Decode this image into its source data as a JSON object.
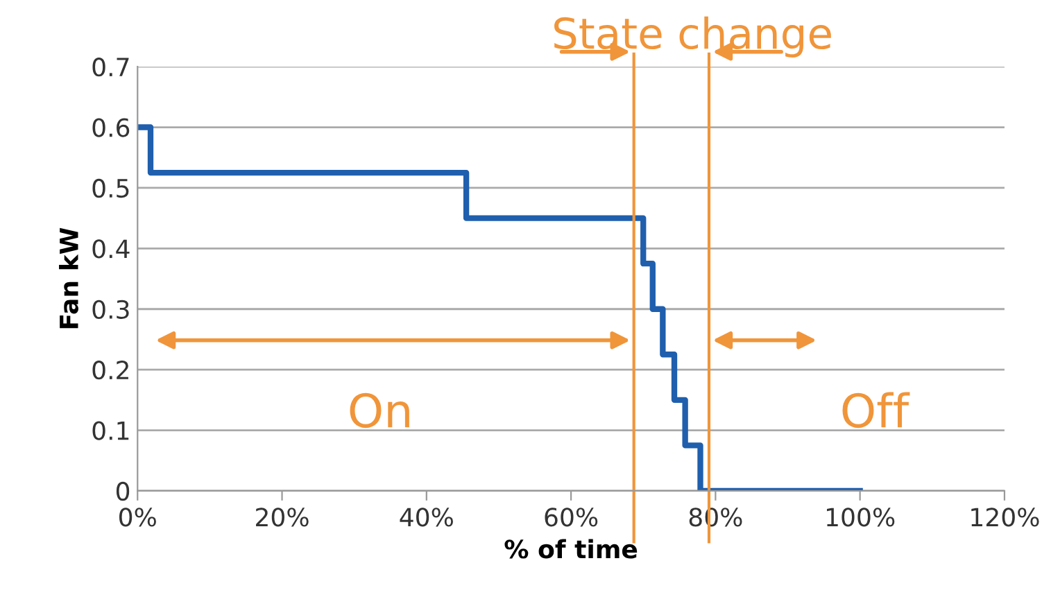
{
  "chart_data": {
    "type": "step",
    "xlabel": "% of time",
    "ylabel": "Fan kW",
    "x": [
      0,
      1.8,
      45.5,
      70,
      71.3,
      72.7,
      74.3,
      75.8,
      77.9,
      100
    ],
    "series": [
      {
        "color": "#1f5fad",
        "values": [
          0.6,
          0.525,
          0.45,
          0.375,
          0.3,
          0.225,
          0.15,
          0.075,
          0,
          0
        ]
      }
    ],
    "xlim": [
      0,
      120
    ],
    "xticks": [
      {
        "value": 0,
        "label": "0%"
      },
      {
        "value": 20,
        "label": "20%"
      },
      {
        "value": 40,
        "label": "40%"
      },
      {
        "value": 60,
        "label": "60%"
      },
      {
        "value": 80,
        "label": "80%"
      },
      {
        "value": 100,
        "label": "100%"
      },
      {
        "value": 120,
        "label": "120%"
      }
    ],
    "ylim": [
      0,
      0.7
    ],
    "yticks": [
      0,
      0.1,
      0.2,
      0.3,
      0.4,
      0.5,
      0.6,
      0.7
    ],
    "grid": "y",
    "legend": false,
    "marker": "none",
    "line_style": "solid",
    "ref_lines": [
      {
        "axis": "x",
        "value": 68.7,
        "color": "#f0953a"
      },
      {
        "axis": "x",
        "value": 79.1,
        "color": "#f0953a"
      }
    ],
    "annotations": [
      "State change",
      "On",
      "Off"
    ]
  }
}
